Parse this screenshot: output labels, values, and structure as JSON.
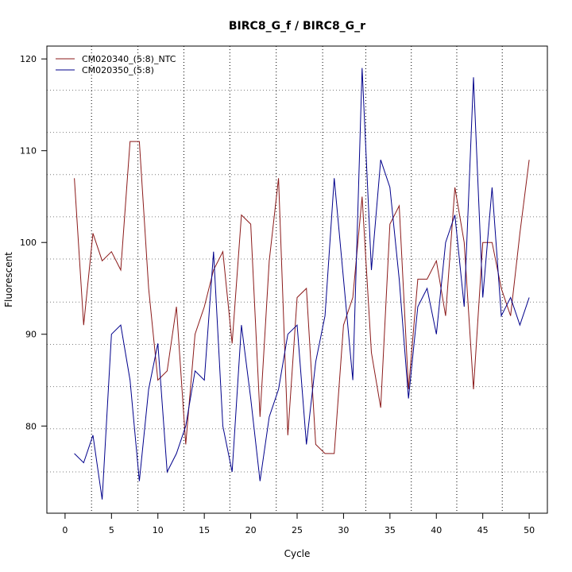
{
  "chart_data": {
    "type": "line",
    "title": "BIRC8_G_f / BIRC8_G_r",
    "xlabel": "Cycle",
    "ylabel": "Fluorescent",
    "xlim": [
      -1.96,
      51.96
    ],
    "ylim": [
      70.5,
      121.4
    ],
    "xticks": [
      0,
      5,
      10,
      15,
      20,
      25,
      30,
      35,
      40,
      45,
      50
    ],
    "yticks": [
      80,
      90,
      100,
      110,
      120
    ],
    "vgrid": [
      2.85,
      7.85,
      12.8,
      17.75,
      22.75,
      27.75,
      32.4,
      37.3,
      42.2,
      47.1
    ],
    "hgrid": [
      75,
      79.7,
      84.3,
      88.9,
      93.5,
      98.2,
      102.8,
      107.4,
      112,
      116.6
    ],
    "legend_position": "top-left",
    "x": [
      1,
      2,
      3,
      4,
      5,
      6,
      7,
      8,
      9,
      10,
      11,
      12,
      13,
      14,
      15,
      16,
      17,
      18,
      19,
      20,
      21,
      22,
      23,
      24,
      25,
      26,
      27,
      28,
      29,
      30,
      31,
      32,
      33,
      34,
      35,
      36,
      37,
      38,
      39,
      40,
      41,
      42,
      43,
      44,
      45,
      46,
      47,
      48,
      49,
      50
    ],
    "series": [
      {
        "name": "CM020340_(5:8)_NTC",
        "color": "#8b1a1a",
        "values": [
          107,
          91,
          101,
          98,
          99,
          97,
          111,
          111,
          95,
          85,
          86,
          93,
          78,
          90,
          93,
          97,
          99,
          89,
          103,
          102,
          81,
          98,
          107,
          79,
          94,
          95,
          78,
          77,
          77,
          91,
          94,
          105,
          88,
          82,
          102,
          104,
          84,
          96,
          96,
          98,
          92,
          106,
          100,
          84,
          100,
          100,
          95,
          92,
          101,
          109
        ]
      },
      {
        "name": "CM020350_(5:8)",
        "color": "#00008b",
        "values": [
          77,
          76,
          79,
          72,
          90,
          91,
          85,
          74,
          84,
          89,
          75,
          77,
          80,
          86,
          85,
          99,
          80,
          75,
          91,
          83,
          74,
          81,
          84,
          90,
          91,
          78,
          87,
          92,
          107,
          96,
          85,
          119,
          97,
          109,
          106,
          96,
          83,
          93,
          95,
          90,
          100,
          103,
          93,
          118,
          94,
          106,
          92,
          94,
          91,
          94
        ]
      }
    ]
  }
}
